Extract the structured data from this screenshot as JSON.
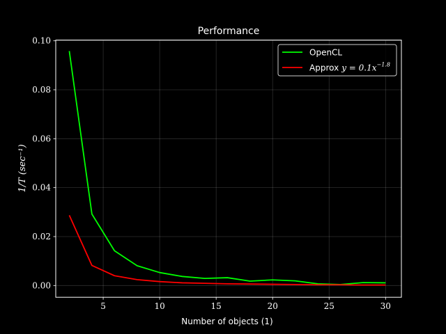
{
  "chart_data": {
    "type": "line",
    "title": "Performance",
    "xlabel": "Number of objects (1)",
    "ylabel": "1/T  (sec⁻¹)",
    "xlim": [
      0.8,
      31.4
    ],
    "ylim": [
      -0.0048,
      0.1003
    ],
    "xticks": [
      5,
      10,
      15,
      20,
      25,
      30
    ],
    "xtick_labels": [
      "5",
      "10",
      "15",
      "20",
      "25",
      "30"
    ],
    "yticks": [
      0.0,
      0.02,
      0.04,
      0.06,
      0.08,
      0.1
    ],
    "ytick_labels": [
      "0.00",
      "0.02",
      "0.04",
      "0.06",
      "0.08",
      "0.10"
    ],
    "grid": true,
    "legend_position": "top-right",
    "x": [
      2,
      4,
      6,
      8,
      10,
      12,
      14,
      16,
      18,
      20,
      22,
      24,
      26,
      28,
      30
    ],
    "series": [
      {
        "name": "OpenCL",
        "color": "#00ff00",
        "values": [
          0.0958,
          0.0292,
          0.0142,
          0.0081,
          0.0053,
          0.0037,
          0.0029,
          0.0032,
          0.0018,
          0.0023,
          0.0019,
          0.0007,
          0.0004,
          0.0012,
          0.0011
        ]
      },
      {
        "name": "Approx",
        "name_math": "y = 0.1x",
        "name_exp": "−1.8",
        "color": "#ff0000",
        "values": [
          0.0287,
          0.0082,
          0.004,
          0.0024,
          0.0016,
          0.0011,
          0.0009,
          0.0007,
          0.0006,
          0.0005,
          0.0004,
          0.0003,
          0.0003,
          0.0002,
          0.0002
        ]
      }
    ]
  }
}
